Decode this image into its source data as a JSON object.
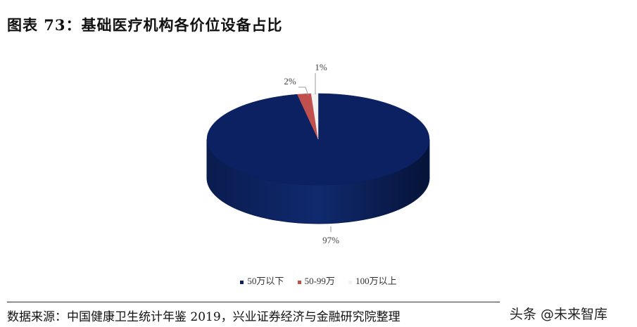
{
  "title": "图表 73：基础医疗机构各价位设备占比",
  "chart_data": {
    "type": "pie",
    "style": "3d",
    "title": "",
    "slices": [
      {
        "label": "50万以下",
        "value": 97,
        "data_label": "97%",
        "color": "#0b2161"
      },
      {
        "label": "50-99万",
        "value": 2,
        "data_label": "2%",
        "color": "#c0504d"
      },
      {
        "label": "100万以上",
        "value": 1,
        "data_label": "1%",
        "color": "#f2f2f2"
      }
    ],
    "legend_placement": "bottom"
  },
  "source": "数据来源：中国健康卫生统计年鉴 2019，兴业证券经济与金融研究院整理",
  "watermark": "头条 @未来智库"
}
